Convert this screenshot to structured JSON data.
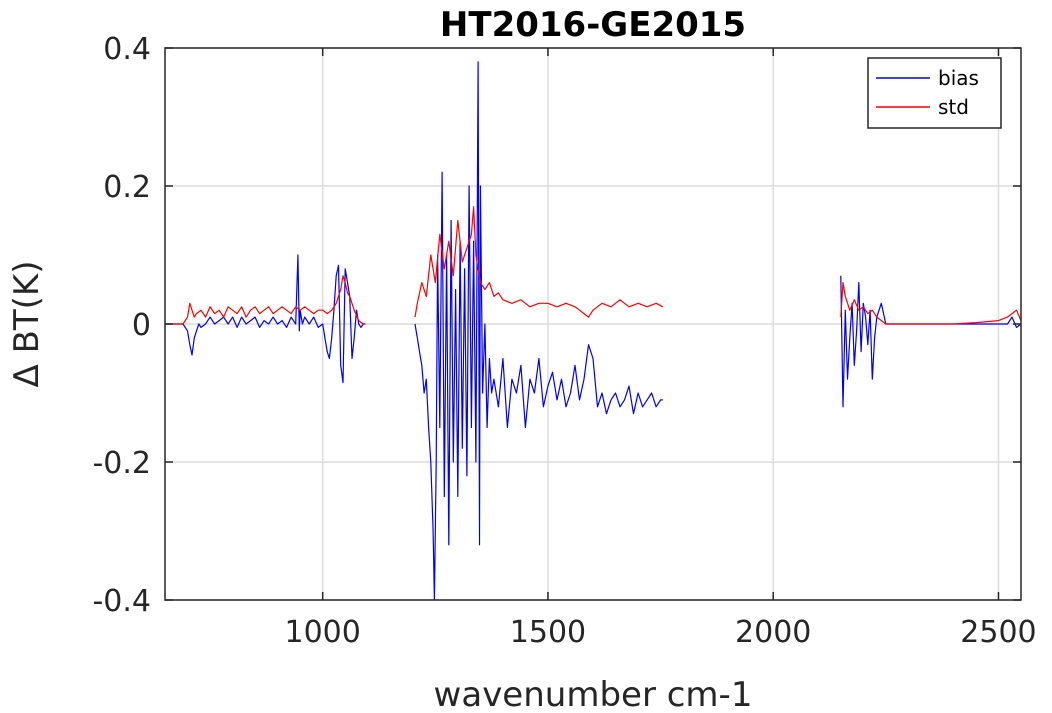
{
  "chart_data": {
    "type": "line",
    "title": "HT2016-GE2015",
    "xlabel": "wavenumber cm-1",
    "ylabel": "Δ BT(K)",
    "xlim": [
      650,
      2550
    ],
    "ylim": [
      -0.4,
      0.4
    ],
    "x_ticks": [
      1000,
      1500,
      2000,
      2500
    ],
    "x_tick_labels": [
      "1000",
      "1500",
      "2000",
      "2500"
    ],
    "y_ticks": [
      -0.4,
      -0.2,
      0,
      0.2,
      0.4
    ],
    "y_tick_labels": [
      "-0.4",
      "-0.2",
      "0",
      "0.2",
      "0.4"
    ],
    "grid": true,
    "legend_position": "top-right",
    "series": [
      {
        "name": "bias",
        "color": "#0000ff",
        "segments": [
          {
            "x": [
              650,
              690,
              700,
              705,
              710,
              715,
              720,
              725,
              730,
              740,
              750,
              760,
              770,
              780,
              790,
              800,
              810,
              820,
              830,
              840,
              850,
              860,
              870,
              880,
              890,
              900,
              910,
              920,
              930,
              940,
              945,
              948,
              950,
              955,
              960,
              970,
              980,
              990,
              1000,
              1005,
              1010,
              1015,
              1020,
              1025,
              1030,
              1035,
              1040,
              1045,
              1050,
              1055,
              1060,
              1065,
              1070,
              1075,
              1080,
              1085,
              1090,
              1095
            ],
            "y": [
              0,
              0,
              -0.01,
              -0.03,
              -0.045,
              -0.02,
              -0.01,
              0,
              -0.005,
              0,
              0.01,
              0,
              0.005,
              0.01,
              0,
              0.01,
              -0.005,
              0.01,
              0,
              0.005,
              0.01,
              -0.005,
              0.005,
              0,
              0.01,
              0,
              0.005,
              -0.005,
              0.01,
              0,
              0.1,
              -0.01,
              0.02,
              0,
              0.01,
              0,
              0.01,
              -0.005,
              0,
              -0.02,
              -0.04,
              -0.05,
              -0.02,
              0.02,
              0.07,
              0.085,
              -0.06,
              -0.085,
              0.08,
              0.06,
              0.04,
              -0.05,
              -0.02,
              0.02,
              0,
              -0.005,
              0,
              0
            ]
          },
          {
            "x": [
              1205,
              1210,
              1215,
              1220,
              1225,
              1230,
              1235,
              1240,
              1245,
              1248,
              1252,
              1255,
              1260,
              1265,
              1270,
              1275,
              1280,
              1285,
              1290,
              1295,
              1300,
              1305,
              1310,
              1315,
              1320,
              1325,
              1330,
              1335,
              1340,
              1345,
              1348,
              1350,
              1355,
              1360,
              1365,
              1370,
              1375,
              1380,
              1390,
              1400,
              1410,
              1420,
              1430,
              1440,
              1450,
              1460,
              1470,
              1480,
              1490,
              1500,
              1510,
              1520,
              1530,
              1540,
              1550,
              1560,
              1570,
              1580,
              1590,
              1600,
              1610,
              1620,
              1630,
              1640,
              1650,
              1660,
              1670,
              1680,
              1690,
              1700,
              1710,
              1720,
              1730,
              1740,
              1750,
              1755
            ],
            "y": [
              0,
              -0.02,
              -0.04,
              -0.06,
              -0.1,
              -0.08,
              -0.15,
              -0.2,
              -0.3,
              -0.4,
              -0.2,
              0.1,
              -0.15,
              0.22,
              -0.25,
              0.1,
              -0.32,
              0.15,
              -0.2,
              0.05,
              -0.25,
              0.12,
              -0.18,
              0.08,
              -0.22,
              0.2,
              -0.15,
              0.12,
              -0.2,
              0.38,
              -0.32,
              0.2,
              -0.1,
              0,
              -0.15,
              -0.05,
              -0.1,
              -0.08,
              -0.12,
              -0.05,
              -0.15,
              -0.08,
              -0.1,
              -0.06,
              -0.15,
              -0.08,
              -0.1,
              -0.05,
              -0.12,
              -0.09,
              -0.07,
              -0.11,
              -0.08,
              -0.12,
              -0.1,
              -0.06,
              -0.11,
              -0.08,
              -0.03,
              -0.05,
              -0.12,
              -0.1,
              -0.13,
              -0.11,
              -0.1,
              -0.12,
              -0.11,
              -0.09,
              -0.13,
              -0.1,
              -0.12,
              -0.11,
              -0.1,
              -0.12,
              -0.11,
              -0.11
            ]
          },
          {
            "x": [
              2150,
              2155,
              2160,
              2165,
              2170,
              2175,
              2180,
              2185,
              2190,
              2195,
              2200,
              2205,
              2210,
              2215,
              2220,
              2225,
              2230,
              2240,
              2250,
              2300,
              2350,
              2400,
              2450,
              2500,
              2520,
              2530,
              2540,
              2550
            ],
            "y": [
              0.07,
              -0.12,
              0.02,
              -0.08,
              -0.02,
              0.03,
              -0.06,
              -0.01,
              0.06,
              -0.04,
              0.03,
              0.01,
              -0.03,
              0.02,
              -0.08,
              -0.02,
              0.01,
              0.03,
              0,
              0,
              0,
              0,
              0,
              0,
              0,
              0.01,
              -0.005,
              0
            ]
          }
        ]
      },
      {
        "name": "std",
        "color": "#ff0000",
        "segments": [
          {
            "x": [
              650,
              690,
              700,
              705,
              710,
              715,
              720,
              730,
              740,
              750,
              760,
              770,
              780,
              790,
              800,
              810,
              820,
              830,
              840,
              850,
              860,
              870,
              880,
              890,
              900,
              910,
              920,
              930,
              940,
              950,
              960,
              970,
              980,
              990,
              1000,
              1010,
              1020,
              1030,
              1040,
              1045,
              1050,
              1055,
              1060,
              1070,
              1080,
              1090,
              1095
            ],
            "y": [
              0,
              0,
              0.01,
              0.03,
              0.02,
              0.01,
              0.015,
              0.02,
              0.01,
              0.025,
              0.015,
              0.02,
              0.01,
              0.025,
              0.02,
              0.015,
              0.025,
              0.01,
              0.02,
              0.025,
              0.015,
              0.02,
              0.025,
              0.015,
              0.02,
              0.025,
              0.02,
              0.015,
              0.025,
              0.02,
              0.025,
              0.02,
              0.015,
              0.02,
              0.02,
              0.015,
              0.02,
              0.03,
              0.05,
              0.07,
              0.06,
              0.045,
              0.04,
              0.02,
              0.005,
              0,
              0
            ]
          },
          {
            "x": [
              1205,
              1210,
              1220,
              1230,
              1240,
              1250,
              1260,
              1270,
              1280,
              1290,
              1300,
              1310,
              1320,
              1330,
              1335,
              1340,
              1345,
              1350,
              1360,
              1370,
              1380,
              1390,
              1400,
              1420,
              1440,
              1460,
              1480,
              1500,
              1520,
              1540,
              1560,
              1570,
              1580,
              1590,
              1600,
              1620,
              1640,
              1660,
              1680,
              1700,
              1720,
              1740,
              1755
            ],
            "y": [
              0.01,
              0.03,
              0.06,
              0.04,
              0.1,
              0.06,
              0.13,
              0.08,
              0.12,
              0.07,
              0.15,
              0.09,
              0.11,
              0.13,
              0.17,
              0.1,
              0.08,
              0.06,
              0.05,
              0.06,
              0.04,
              0.045,
              0.035,
              0.03,
              0.035,
              0.025,
              0.03,
              0.03,
              0.025,
              0.03,
              0.025,
              0.02,
              0.015,
              0.01,
              0.02,
              0.03,
              0.025,
              0.035,
              0.025,
              0.03,
              0.025,
              0.03,
              0.025
            ]
          },
          {
            "x": [
              2150,
              2155,
              2160,
              2170,
              2180,
              2190,
              2200,
              2210,
              2220,
              2230,
              2240,
              2250,
              2300,
              2350,
              2400,
              2450,
              2500,
              2520,
              2530,
              2540,
              2550
            ],
            "y": [
              0.01,
              0.06,
              0.04,
              0.02,
              0.035,
              0.02,
              0.025,
              0.015,
              0.02,
              0.01,
              0.005,
              0,
              0,
              0,
              0,
              0.002,
              0.005,
              0.01,
              0.015,
              0.02,
              0.005
            ]
          }
        ]
      }
    ]
  }
}
